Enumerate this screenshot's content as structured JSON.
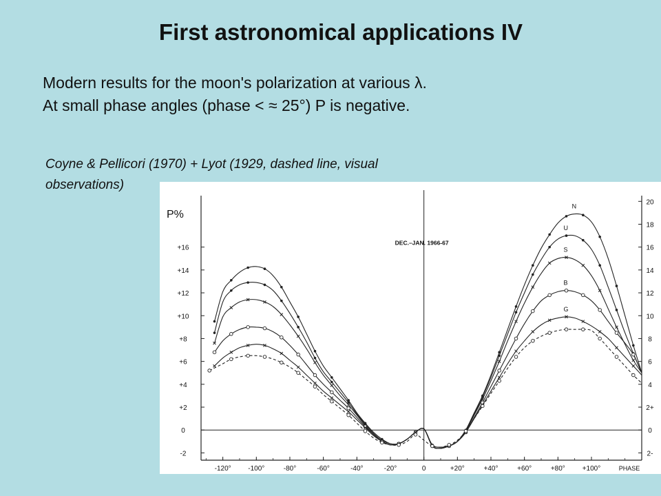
{
  "slide": {
    "title": "First astronomical applications IV",
    "line1": "Modern results for the moon's polarization at various λ.",
    "line2": "At small phase angles (phase < ≈ 25°) P is negative.",
    "caption_line1": "Coyne & Pellicori (1970) + Lyot (1929, dashed line, visual",
    "caption_line2": "observations)"
  },
  "chart_data": {
    "type": "line",
    "title": "",
    "annotation": "DEC.–JAN. 1966-67",
    "ylabel": "P%",
    "xlabel_right": "PHASE",
    "xlim": [
      -133,
      130
    ],
    "ylim": [
      -3,
      20.5
    ],
    "x_ticks": [
      -120,
      -100,
      -80,
      -60,
      -40,
      -20,
      0,
      20,
      40,
      60,
      80,
      100
    ],
    "x_tick_labels": [
      "-120°",
      "-100°",
      "-80°",
      "-60°",
      "-40°",
      "-20°",
      "0",
      "+20°",
      "+40°",
      "+60°",
      "+80°",
      "+100°"
    ],
    "y_ticks_left": [
      -2,
      0,
      2,
      4,
      6,
      8,
      10,
      12,
      14,
      16
    ],
    "y_tick_labels_left": [
      "-2",
      "0",
      "+2",
      "+4",
      "+6",
      "+8",
      "+10",
      "+12",
      "+14",
      "+16"
    ],
    "y_ticks_right": [
      -2,
      0,
      2,
      4,
      6,
      8,
      10,
      12,
      14,
      16,
      18,
      20
    ],
    "y_tick_labels_right": [
      "2-",
      "0",
      "2+",
      "4",
      "6",
      "8",
      "10",
      "12",
      "14",
      "16",
      "18",
      "20"
    ],
    "zero_line": true,
    "vertical_line_at": 0,
    "series": [
      {
        "name": "N",
        "style": "solid",
        "marker": "dot",
        "x": [
          -125,
          -120,
          -115,
          -110,
          -105,
          -100,
          -95,
          -90,
          -85,
          -80,
          -75,
          -70,
          -65,
          -60,
          -55,
          -50,
          -45,
          -40,
          -35,
          -30,
          -25,
          -20,
          -15,
          -10,
          -5,
          0,
          5,
          10,
          15,
          20,
          25,
          30,
          35,
          40,
          45,
          50,
          55,
          60,
          65,
          70,
          75,
          80,
          85,
          90,
          95,
          100,
          105,
          110,
          115,
          120,
          125,
          130
        ],
        "y": [
          9.5,
          12.1,
          13.1,
          13.8,
          14.2,
          14.3,
          14.1,
          13.5,
          12.5,
          11.2,
          9.9,
          8.4,
          6.9,
          5.6,
          4.6,
          3.6,
          2.6,
          1.5,
          0.6,
          -0.2,
          -0.8,
          -1.2,
          -1.2,
          -0.8,
          -0.2,
          0.1,
          -1.3,
          -1.5,
          -1.4,
          -1.0,
          0.0,
          1.5,
          3.0,
          4.8,
          6.8,
          8.8,
          10.8,
          12.7,
          14.4,
          15.9,
          17.1,
          18.1,
          18.7,
          18.9,
          18.8,
          18.2,
          16.9,
          15.0,
          12.6,
          10.0,
          7.4,
          5.0
        ]
      },
      {
        "name": "U",
        "style": "solid",
        "marker": "dot",
        "x": [
          -125,
          -120,
          -115,
          -110,
          -105,
          -100,
          -95,
          -90,
          -85,
          -80,
          -75,
          -70,
          -65,
          -60,
          -55,
          -50,
          -45,
          -40,
          -35,
          -30,
          -25,
          -20,
          -15,
          -10,
          -5,
          0,
          5,
          10,
          15,
          20,
          25,
          30,
          35,
          40,
          45,
          50,
          55,
          60,
          65,
          70,
          75,
          80,
          85,
          90,
          95,
          100,
          105,
          110,
          115,
          120,
          125,
          130
        ],
        "y": [
          8.5,
          11.2,
          12.2,
          12.7,
          12.9,
          12.9,
          12.7,
          12.2,
          11.3,
          10.2,
          9.0,
          7.7,
          6.3,
          5.1,
          4.2,
          3.3,
          2.4,
          1.4,
          0.5,
          -0.3,
          -0.9,
          -1.2,
          -1.2,
          -0.8,
          -0.2,
          0.1,
          -1.3,
          -1.5,
          -1.4,
          -1.0,
          0.0,
          1.4,
          2.9,
          4.6,
          6.5,
          8.4,
          10.3,
          12.0,
          13.6,
          14.9,
          16.0,
          16.7,
          17.0,
          17.0,
          16.6,
          15.8,
          14.4,
          12.5,
          10.5,
          8.5,
          6.7,
          5.0
        ]
      },
      {
        "name": "S",
        "style": "solid",
        "marker": "x",
        "x": [
          -125,
          -120,
          -115,
          -110,
          -105,
          -100,
          -95,
          -90,
          -85,
          -80,
          -75,
          -70,
          -65,
          -60,
          -55,
          -50,
          -45,
          -40,
          -35,
          -30,
          -25,
          -20,
          -15,
          -10,
          -5,
          0,
          5,
          10,
          15,
          20,
          25,
          30,
          35,
          40,
          45,
          50,
          55,
          60,
          65,
          70,
          75,
          80,
          85,
          90,
          95,
          100,
          105,
          110,
          115,
          120,
          125,
          130
        ],
        "y": [
          7.6,
          9.9,
          10.7,
          11.2,
          11.4,
          11.4,
          11.2,
          10.8,
          10.1,
          9.2,
          8.2,
          7.1,
          5.9,
          4.8,
          3.9,
          3.0,
          2.2,
          1.3,
          0.4,
          -0.4,
          -1.0,
          -1.3,
          -1.2,
          -0.8,
          -0.2,
          0.1,
          -1.4,
          -1.6,
          -1.4,
          -1.0,
          -0.1,
          1.3,
          2.7,
          4.3,
          6.0,
          7.8,
          9.5,
          11.1,
          12.5,
          13.7,
          14.6,
          15.0,
          15.1,
          14.9,
          14.4,
          13.5,
          12.2,
          10.6,
          9.0,
          7.5,
          6.1,
          5.0
        ]
      },
      {
        "name": "B",
        "style": "solid",
        "marker": "circle",
        "x": [
          -125,
          -120,
          -115,
          -110,
          -105,
          -100,
          -95,
          -90,
          -85,
          -80,
          -75,
          -70,
          -65,
          -60,
          -55,
          -50,
          -45,
          -40,
          -35,
          -30,
          -25,
          -20,
          -15,
          -10,
          -5,
          0,
          5,
          10,
          15,
          20,
          25,
          30,
          35,
          40,
          45,
          50,
          55,
          60,
          65,
          70,
          75,
          80,
          85,
          90,
          95,
          100,
          105,
          110,
          115,
          120,
          125,
          130
        ],
        "y": [
          6.8,
          7.8,
          8.4,
          8.8,
          9.0,
          9.0,
          8.9,
          8.6,
          8.1,
          7.4,
          6.6,
          5.7,
          4.8,
          4.0,
          3.3,
          2.6,
          1.9,
          1.1,
          0.3,
          -0.4,
          -1.0,
          -1.3,
          -1.2,
          -0.8,
          -0.2,
          0.1,
          -1.4,
          -1.6,
          -1.4,
          -1.0,
          -0.2,
          1.1,
          2.4,
          3.8,
          5.2,
          6.6,
          8.0,
          9.3,
          10.4,
          11.3,
          11.8,
          12.1,
          12.2,
          12.1,
          11.8,
          11.3,
          10.5,
          9.5,
          8.5,
          7.6,
          6.6,
          5.0
        ]
      },
      {
        "name": "G",
        "style": "solid",
        "marker": "x",
        "x": [
          -125,
          -120,
          -115,
          -110,
          -105,
          -100,
          -95,
          -90,
          -85,
          -80,
          -75,
          -70,
          -65,
          -60,
          -55,
          -50,
          -45,
          -40,
          -35,
          -30,
          -25,
          -20,
          -15,
          -10,
          -5,
          0,
          5,
          10,
          15,
          20,
          25,
          30,
          35,
          40,
          45,
          50,
          55,
          60,
          65,
          70,
          75,
          80,
          85,
          90,
          95,
          100,
          105,
          110,
          115,
          120,
          125,
          130
        ],
        "y": [
          5.6,
          6.3,
          6.8,
          7.2,
          7.4,
          7.5,
          7.4,
          7.1,
          6.7,
          6.1,
          5.5,
          4.8,
          4.1,
          3.4,
          2.8,
          2.2,
          1.6,
          0.9,
          0.2,
          -0.5,
          -1.0,
          -1.3,
          -1.2,
          -0.8,
          -0.2,
          0.1,
          -1.4,
          -1.6,
          -1.4,
          -1.0,
          -0.2,
          1.0,
          2.2,
          3.4,
          4.6,
          5.8,
          6.9,
          7.8,
          8.6,
          9.2,
          9.6,
          9.8,
          9.9,
          9.8,
          9.5,
          9.1,
          8.6,
          8.0,
          7.2,
          6.4,
          5.6,
          4.8
        ]
      },
      {
        "name": "Lyot 1929",
        "style": "dashed",
        "marker": "circle",
        "x": [
          -128,
          -120,
          -115,
          -110,
          -105,
          -100,
          -95,
          -90,
          -85,
          -80,
          -75,
          -70,
          -65,
          -60,
          -55,
          -50,
          -45,
          -40,
          -35,
          -30,
          -25,
          -20,
          -15,
          -10,
          -5,
          0,
          5,
          10,
          15,
          20,
          25,
          30,
          35,
          40,
          45,
          50,
          55,
          60,
          65,
          70,
          75,
          80,
          85,
          90,
          95,
          100,
          105,
          110,
          115,
          120,
          125,
          130
        ],
        "y": [
          5.2,
          5.8,
          6.2,
          6.4,
          6.5,
          6.5,
          6.4,
          6.2,
          5.9,
          5.5,
          5.0,
          4.4,
          3.8,
          3.1,
          2.5,
          1.9,
          1.3,
          0.6,
          -0.1,
          -0.7,
          -1.1,
          -1.3,
          -1.3,
          -1.0,
          -0.4,
          -0.9,
          -1.4,
          -1.5,
          -1.3,
          -0.9,
          -0.1,
          1.0,
          2.1,
          3.2,
          4.3,
          5.4,
          6.4,
          7.2,
          7.8,
          8.2,
          8.5,
          8.7,
          8.8,
          8.8,
          8.8,
          8.7,
          8.0,
          7.2,
          6.4,
          5.6,
          4.8,
          4.1
        ]
      }
    ]
  }
}
